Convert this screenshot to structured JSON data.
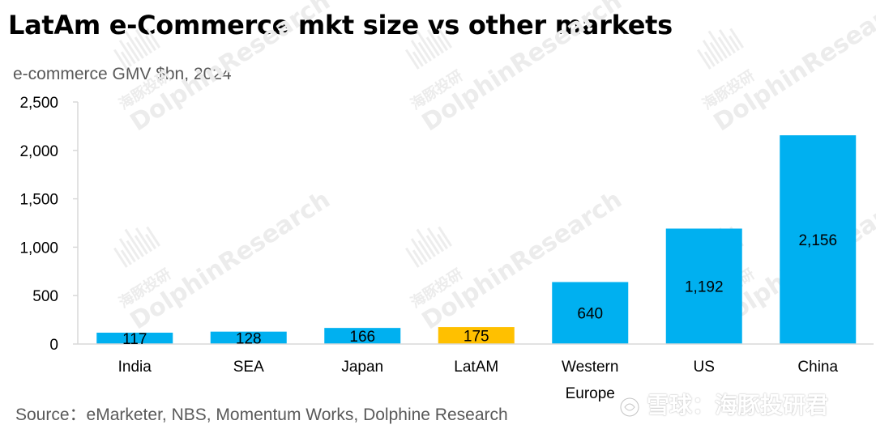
{
  "title": "LatAm e-Commerce mkt size vs other markets",
  "subtitle": "e-commerce GMV $bn, 2024",
  "source": "Source：eMarketer, NBS, Momentum Works, Dolphine Research",
  "watermark": {
    "brand": "DolphinResearch",
    "brand_cn": "海豚投研",
    "corner": "雪球：海豚投研君"
  },
  "colors": {
    "bar": "#00b0f0",
    "highlight": "#ffc000",
    "axis": "#d9d9d9"
  },
  "chart_data": {
    "type": "bar",
    "title": "LatAm e-Commerce mkt size vs other markets",
    "ylabel": "e-commerce GMV $bn, 2024",
    "categories": [
      "India",
      "SEA",
      "Japan",
      "LatAM",
      "Western Europe",
      "US",
      "China"
    ],
    "category_lines": [
      [
        "India"
      ],
      [
        "SEA"
      ],
      [
        "Japan"
      ],
      [
        "LatAM"
      ],
      [
        "Western",
        "Europe"
      ],
      [
        "US"
      ],
      [
        "China"
      ]
    ],
    "values": [
      117,
      128,
      166,
      175,
      640,
      1192,
      2156
    ],
    "value_labels": [
      "117",
      "128",
      "166",
      "175",
      "640",
      "1,192",
      "2,156"
    ],
    "highlight_index": 3,
    "ylim": [
      0,
      2500
    ],
    "yticks": [
      0,
      500,
      1000,
      1500,
      2000,
      2500
    ],
    "ytick_labels": [
      "0",
      "500",
      "1,000",
      "1,500",
      "2,000",
      "2,500"
    ],
    "grid": false,
    "legend": "none"
  }
}
